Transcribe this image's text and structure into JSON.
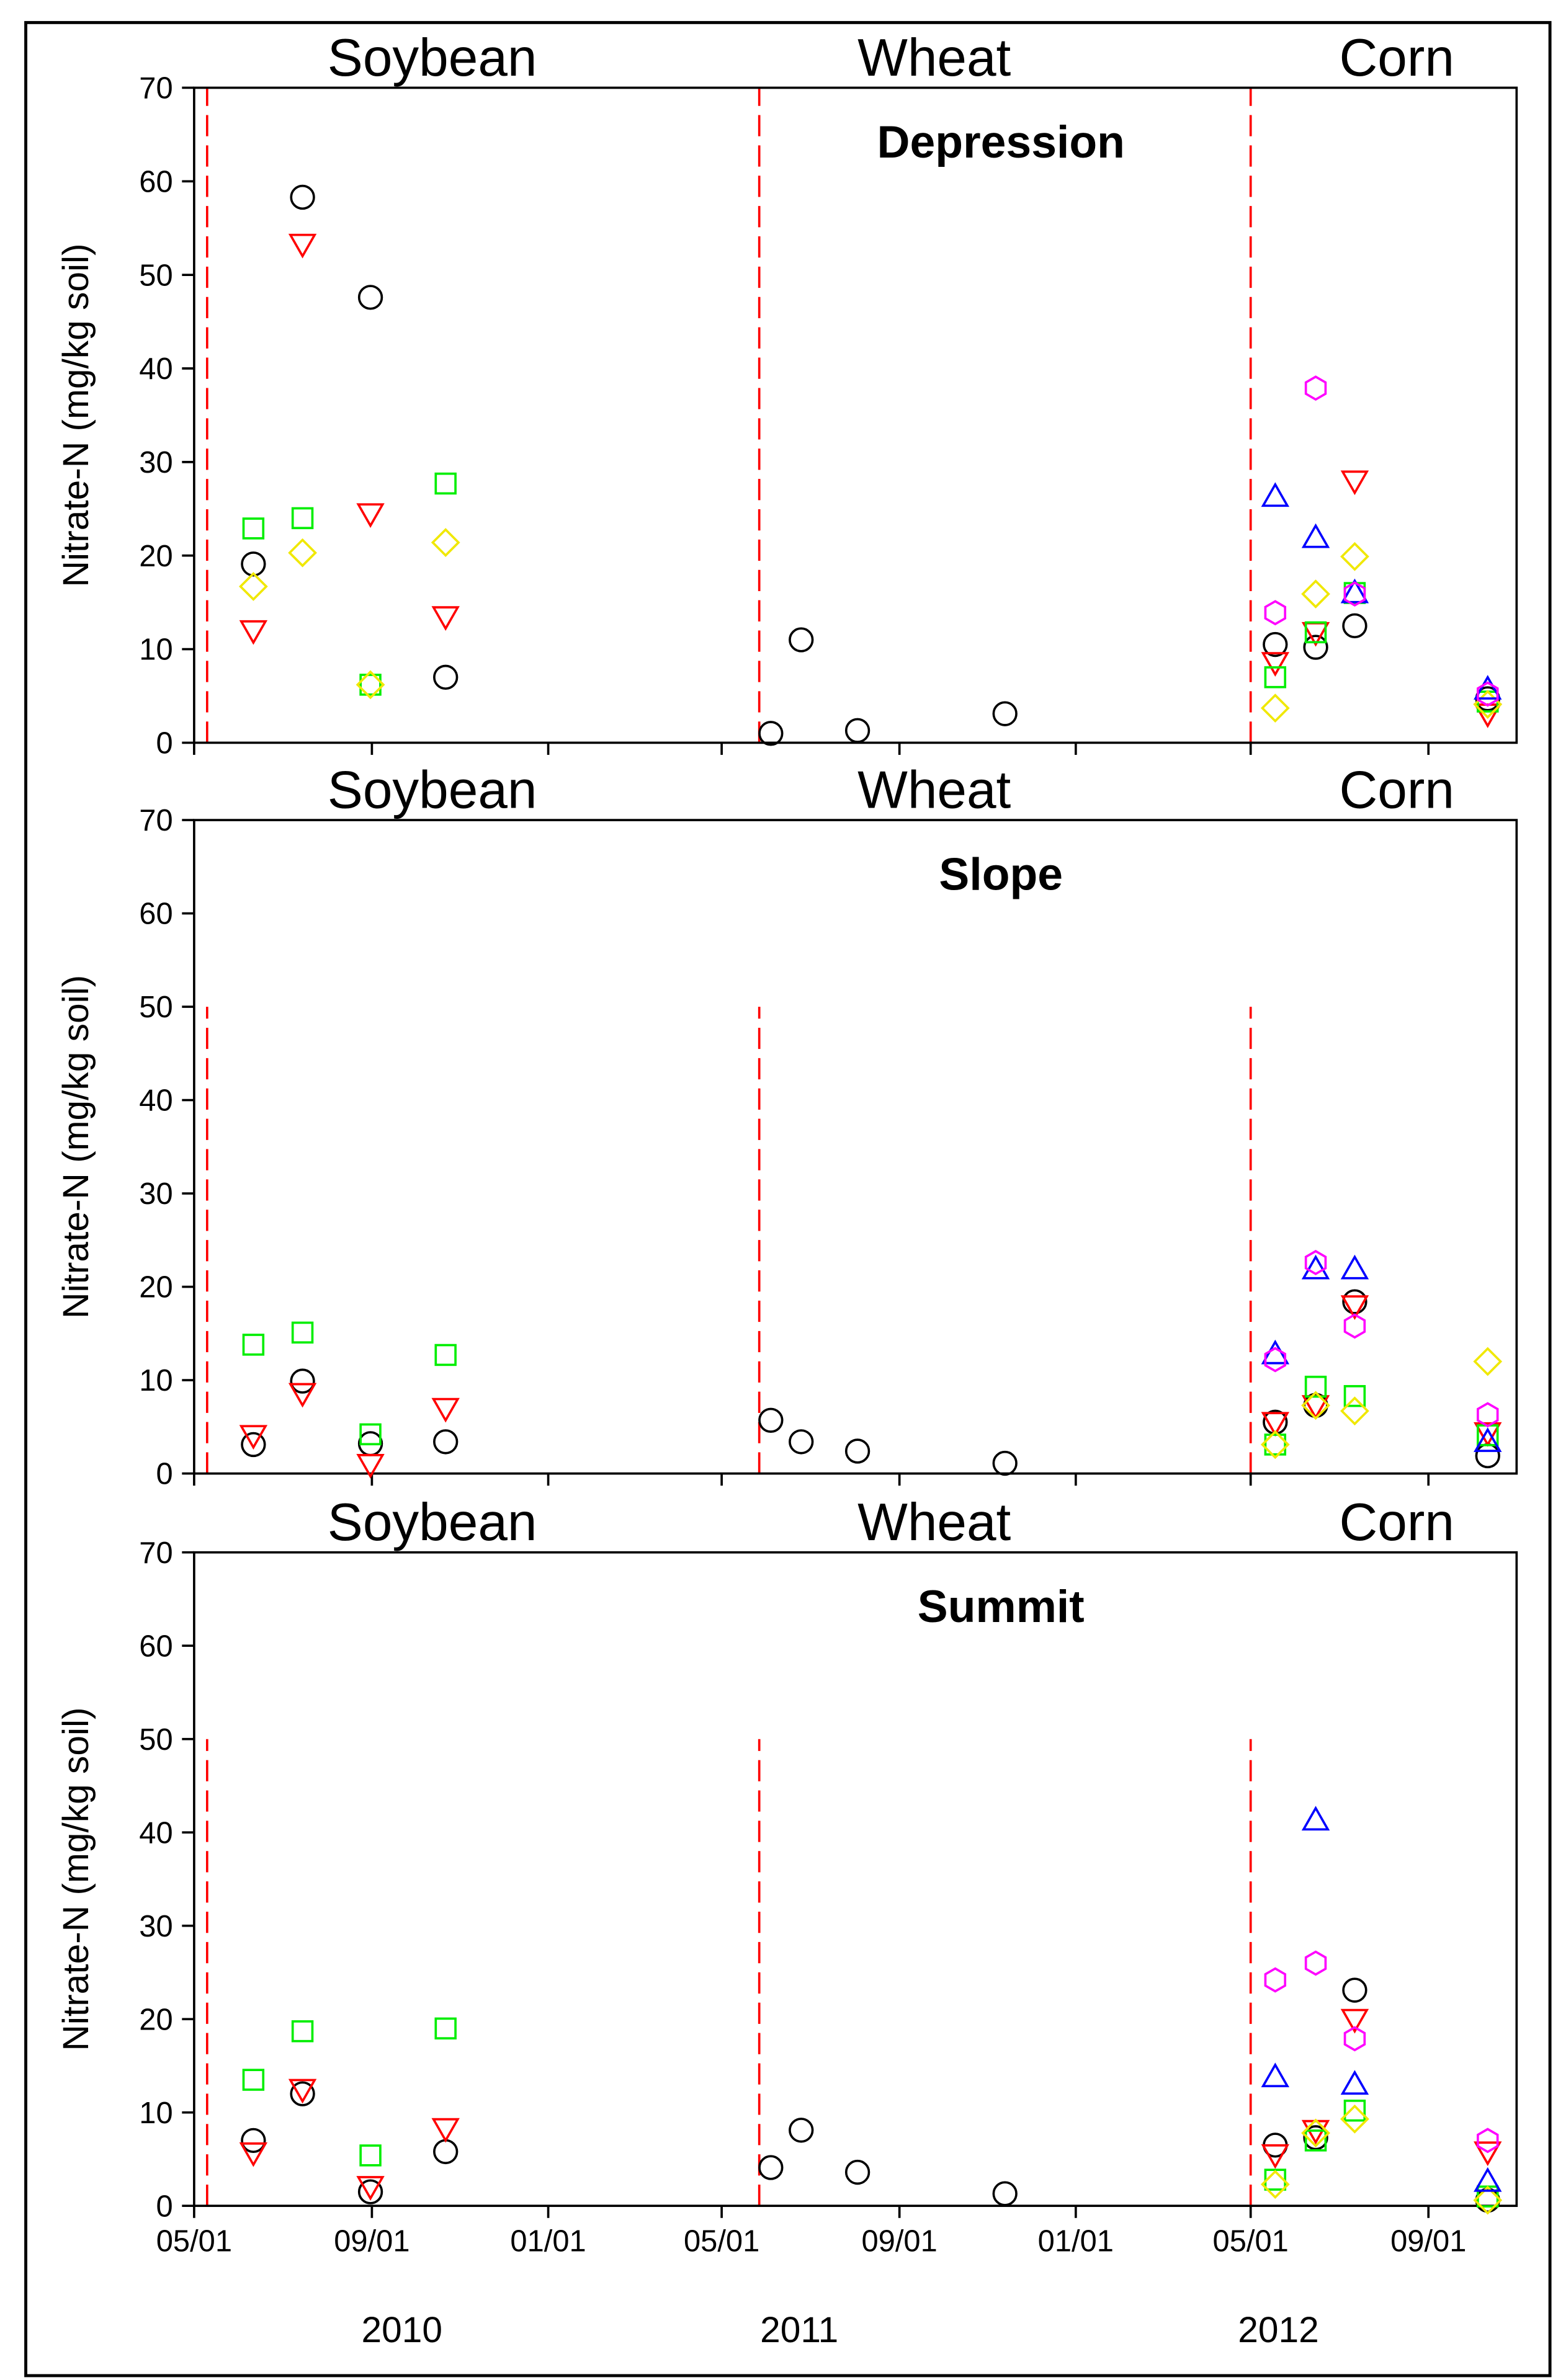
{
  "chart_data": [
    {
      "type": "scatter",
      "title": "Depression",
      "ylabel": "Nitrate-N (mg/kg soil)",
      "crops": [
        {
          "name": "Soybean",
          "start": "2010-05-10"
        },
        {
          "name": "Wheat",
          "start": "2011-05-27"
        },
        {
          "name": "Corn",
          "start": "2012-05-01"
        }
      ],
      "crop_line_top": 70,
      "xlim": [
        "2010-05-01",
        "2012-11-01"
      ],
      "xticks": [
        "2010-05-01",
        "2010-09-01",
        "2011-01-01",
        "2011-05-01",
        "2011-09-01",
        "2012-01-01",
        "2012-05-01",
        "2012-09-01"
      ],
      "ylim": [
        0,
        70
      ],
      "yticks": [
        0,
        10,
        20,
        30,
        40,
        50,
        60,
        70
      ],
      "series": [
        {
          "marker": "circle",
          "color": "#000000",
          "x": [
            "2010-06-11",
            "2010-07-15",
            "2010-08-31",
            "2010-10-22",
            "2011-06-04",
            "2011-06-25",
            "2011-08-03",
            "2011-11-13",
            "2012-05-18",
            "2012-06-15",
            "2012-07-12",
            "2012-10-12"
          ],
          "values": [
            19.1,
            58.3,
            47.6,
            7.0,
            1.0,
            11.0,
            1.3,
            3.1,
            10.5,
            10.2,
            12.5,
            4.7
          ]
        },
        {
          "marker": "triangle-down",
          "color": "#ff0000",
          "x": [
            "2010-06-11",
            "2010-07-15",
            "2010-08-31",
            "2010-10-22",
            "2012-05-18",
            "2012-06-15",
            "2012-07-12",
            "2012-10-12"
          ],
          "values": [
            12.0,
            53.3,
            24.5,
            13.5,
            8.6,
            11.8,
            28.0,
            3.1
          ]
        },
        {
          "marker": "square",
          "color": "#00ee00",
          "x": [
            "2010-06-11",
            "2010-07-15",
            "2010-08-31",
            "2010-10-22",
            "2012-05-18",
            "2012-06-15",
            "2012-07-12",
            "2012-10-12"
          ],
          "values": [
            22.9,
            24.0,
            6.2,
            27.7,
            7.0,
            11.8,
            16.0,
            4.4
          ]
        },
        {
          "marker": "diamond",
          "color": "#f0e800",
          "x": [
            "2010-06-11",
            "2010-07-15",
            "2010-08-31",
            "2010-10-22",
            "2012-05-18",
            "2012-06-15",
            "2012-07-12",
            "2012-10-12"
          ],
          "values": [
            16.7,
            20.3,
            6.2,
            21.4,
            3.7,
            15.9,
            19.9,
            4.1
          ]
        },
        {
          "marker": "triangle-up",
          "color": "#0000ff",
          "x": [
            "2012-05-18",
            "2012-06-15",
            "2012-07-12",
            "2012-10-12"
          ],
          "values": [
            26.3,
            21.9,
            16.0,
            5.7
          ]
        },
        {
          "marker": "hexagon",
          "color": "#ff00ff",
          "x": [
            "2012-05-18",
            "2012-06-15",
            "2012-07-12",
            "2012-10-12"
          ],
          "values": [
            13.9,
            37.9,
            15.9,
            5.2
          ]
        }
      ]
    },
    {
      "type": "scatter",
      "title": "Slope",
      "ylabel": "Nitrate-N (mg/kg soil)",
      "crops": [
        {
          "name": "Soybean",
          "start": "2010-05-10"
        },
        {
          "name": "Wheat",
          "start": "2011-05-27"
        },
        {
          "name": "Corn",
          "start": "2012-05-01"
        }
      ],
      "crop_line_top": 50,
      "xlim": [
        "2010-05-01",
        "2012-11-01"
      ],
      "xticks": [
        "2010-05-01",
        "2010-09-01",
        "2011-01-01",
        "2011-05-01",
        "2011-09-01",
        "2012-01-01",
        "2012-05-01",
        "2012-09-01"
      ],
      "ylim": [
        0,
        70
      ],
      "yticks": [
        0,
        10,
        20,
        30,
        40,
        50,
        60,
        70
      ],
      "series": [
        {
          "marker": "circle",
          "color": "#000000",
          "x": [
            "2010-06-11",
            "2010-07-15",
            "2010-08-31",
            "2010-10-22",
            "2011-06-04",
            "2011-06-25",
            "2011-08-03",
            "2011-11-13",
            "2012-05-18",
            "2012-06-15",
            "2012-07-12",
            "2012-10-12"
          ],
          "values": [
            3.1,
            9.9,
            3.2,
            3.4,
            5.7,
            3.4,
            2.4,
            1.1,
            5.5,
            7.3,
            18.4,
            1.9
          ]
        },
        {
          "marker": "triangle-down",
          "color": "#ff0000",
          "x": [
            "2010-06-11",
            "2010-07-15",
            "2010-08-31",
            "2010-10-22",
            "2012-05-18",
            "2012-06-15",
            "2012-07-12",
            "2012-10-12"
          ],
          "values": [
            4.1,
            8.6,
            1.0,
            7.0,
            5.5,
            7.3,
            18.0,
            4.4
          ]
        },
        {
          "marker": "square",
          "color": "#00ee00",
          "x": [
            "2010-06-11",
            "2010-07-15",
            "2010-08-31",
            "2010-10-22",
            "2012-05-18",
            "2012-06-15",
            "2012-07-12",
            "2012-10-12"
          ],
          "values": [
            13.8,
            15.1,
            4.2,
            12.7,
            3.1,
            9.3,
            8.3,
            4.1
          ]
        },
        {
          "marker": "diamond",
          "color": "#f0e800",
          "x": [
            "2012-05-18",
            "2012-06-15",
            "2012-07-12",
            "2012-10-12"
          ],
          "values": [
            3.1,
            7.3,
            6.7,
            12.0
          ]
        },
        {
          "marker": "triangle-up",
          "color": "#0000ff",
          "x": [
            "2012-05-18",
            "2012-06-15",
            "2012-07-12",
            "2012-10-12"
          ],
          "values": [
            12.8,
            21.9,
            21.9,
            3.4
          ]
        },
        {
          "marker": "hexagon",
          "color": "#ff00ff",
          "x": [
            "2012-05-18",
            "2012-06-15",
            "2012-07-12",
            "2012-10-12"
          ],
          "values": [
            12.2,
            22.6,
            15.8,
            6.3
          ]
        }
      ]
    },
    {
      "type": "scatter",
      "title": "Summit",
      "ylabel": "Nitrate-N (mg/kg soil)",
      "crops": [
        {
          "name": "Soybean",
          "start": "2010-05-10"
        },
        {
          "name": "Wheat",
          "start": "2011-05-27"
        },
        {
          "name": "Corn",
          "start": "2012-05-01"
        }
      ],
      "crop_line_top": 50,
      "xlim": [
        "2010-05-01",
        "2012-11-01"
      ],
      "xticks": [
        {
          "value": "2010-05-01",
          "label": "05/01"
        },
        {
          "value": "2010-09-01",
          "label": "09/01"
        },
        {
          "value": "2011-01-01",
          "label": "01/01"
        },
        {
          "value": "2011-05-01",
          "label": "05/01"
        },
        {
          "value": "2011-09-01",
          "label": "09/01"
        },
        {
          "value": "2012-01-01",
          "label": "01/01"
        },
        {
          "value": "2012-05-01",
          "label": "05/01"
        },
        {
          "value": "2012-09-01",
          "label": "09/01"
        }
      ],
      "year_labels": [
        "2010",
        "2011",
        "2012"
      ],
      "ylim": [
        0,
        70
      ],
      "yticks": [
        0,
        10,
        20,
        30,
        40,
        50,
        60,
        70
      ],
      "series": [
        {
          "marker": "circle",
          "color": "#000000",
          "x": [
            "2010-06-11",
            "2010-07-15",
            "2010-08-31",
            "2010-10-22",
            "2011-06-04",
            "2011-06-25",
            "2011-08-03",
            "2011-11-13",
            "2012-05-18",
            "2012-06-15",
            "2012-07-12",
            "2012-10-12"
          ],
          "values": [
            7.0,
            12.0,
            1.5,
            5.8,
            4.1,
            8.1,
            3.6,
            1.3,
            6.5,
            7.3,
            23.1,
            0.6
          ]
        },
        {
          "marker": "triangle-down",
          "color": "#ff0000",
          "x": [
            "2010-06-11",
            "2010-07-15",
            "2010-08-31",
            "2010-10-22",
            "2012-05-18",
            "2012-06-15",
            "2012-07-12",
            "2012-10-12"
          ],
          "values": [
            5.7,
            12.5,
            2.1,
            8.3,
            5.5,
            8.1,
            20.0,
            5.8
          ]
        },
        {
          "marker": "square",
          "color": "#00ee00",
          "x": [
            "2010-06-11",
            "2010-07-15",
            "2010-08-31",
            "2010-10-22",
            "2012-05-18",
            "2012-06-15",
            "2012-07-12",
            "2012-10-12"
          ],
          "values": [
            13.5,
            18.7,
            5.4,
            19.0,
            2.8,
            7.0,
            10.2,
            1.0
          ]
        },
        {
          "marker": "diamond",
          "color": "#f0e800",
          "x": [
            "2012-05-18",
            "2012-06-15",
            "2012-07-12",
            "2012-10-12"
          ],
          "values": [
            2.3,
            7.8,
            9.3,
            0.6
          ]
        },
        {
          "marker": "triangle-up",
          "color": "#0000ff",
          "x": [
            "2012-05-18",
            "2012-06-15",
            "2012-07-12",
            "2012-10-12"
          ],
          "values": [
            13.8,
            41.3,
            13.0,
            2.6
          ]
        },
        {
          "marker": "hexagon",
          "color": "#ff00ff",
          "x": [
            "2012-05-18",
            "2012-06-15",
            "2012-07-12",
            "2012-10-12"
          ],
          "values": [
            24.2,
            26.0,
            17.9,
            7.0
          ]
        }
      ]
    }
  ]
}
